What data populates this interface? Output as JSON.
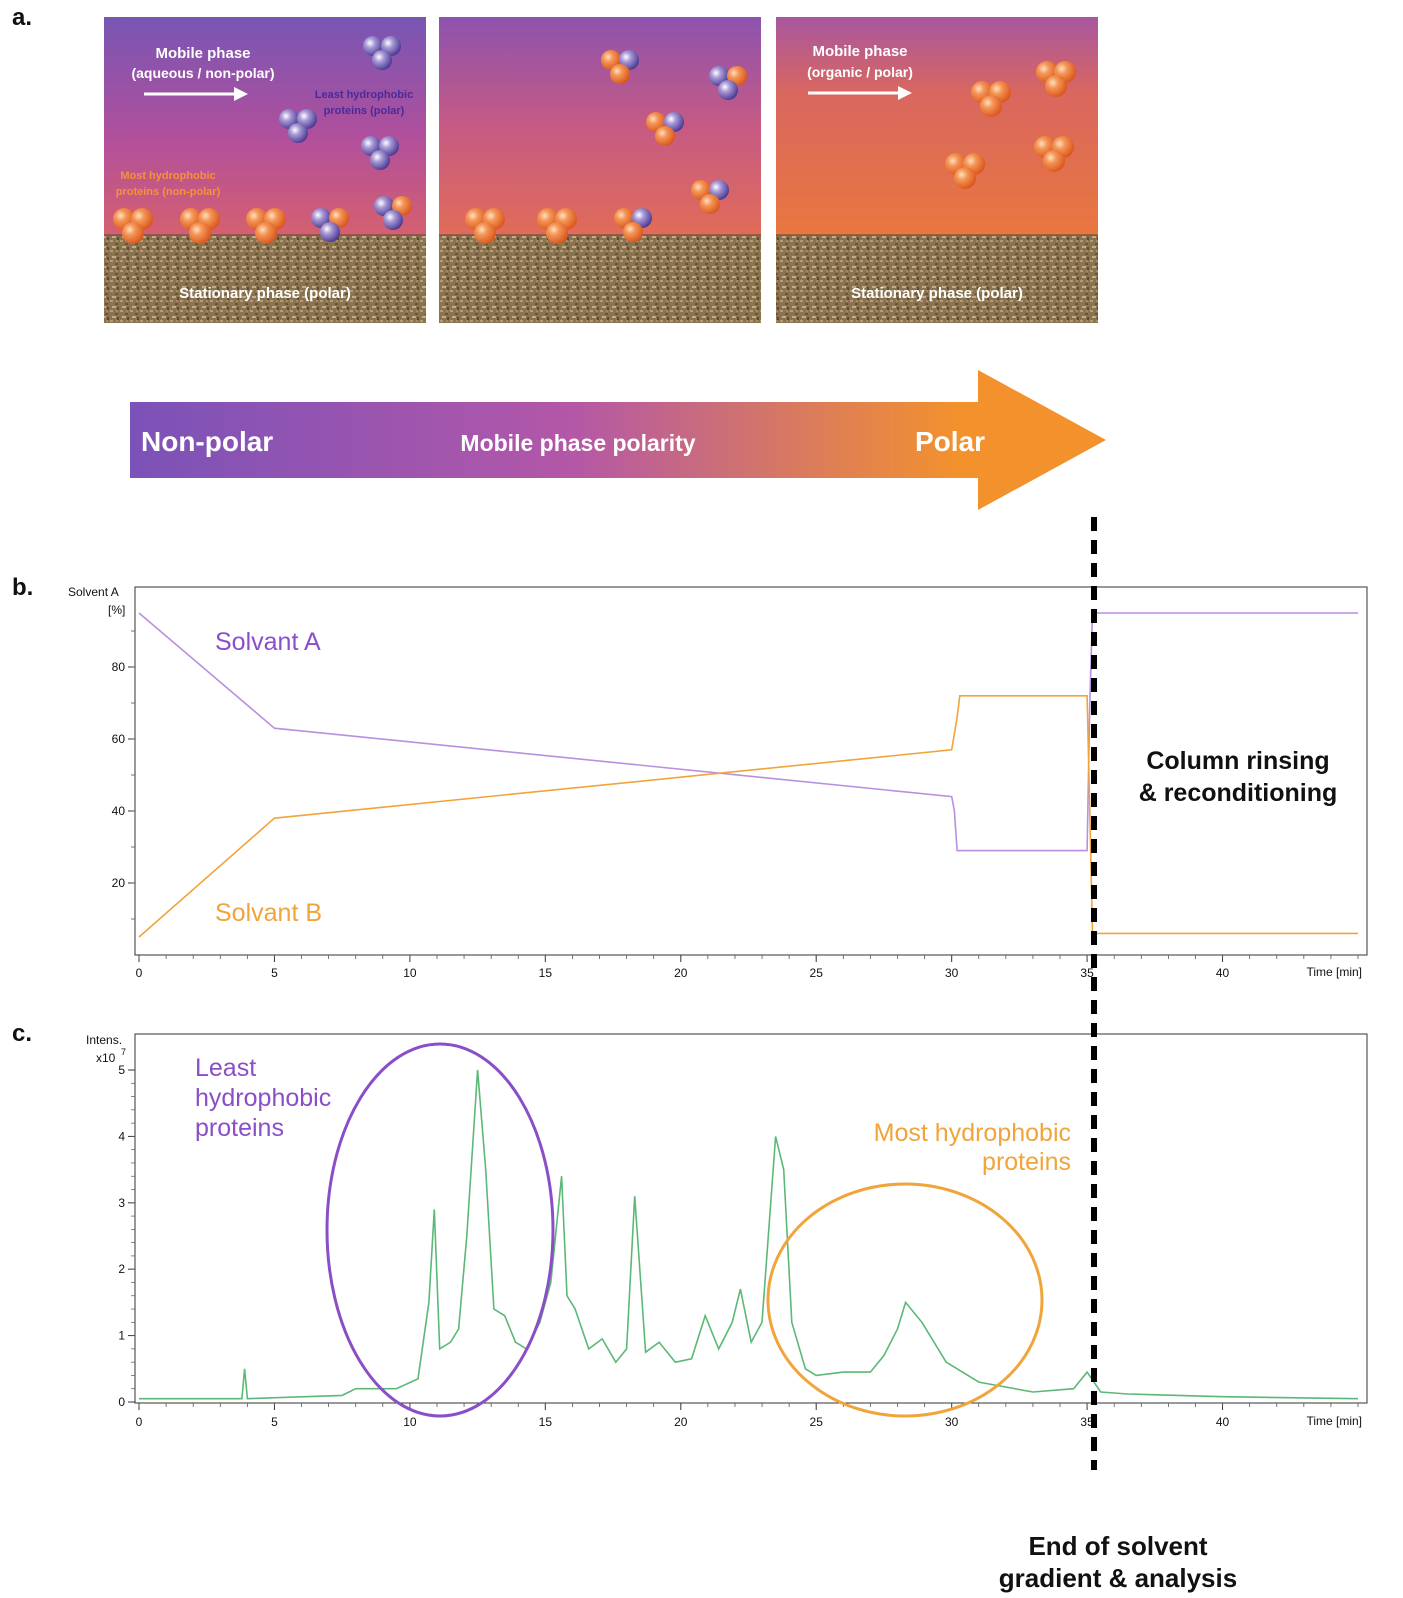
{
  "panels": {
    "a": "a.",
    "b": "b.",
    "c": "c."
  },
  "diagram": {
    "box1": {
      "mobile_title": "Mobile phase",
      "mobile_sub": "(aqueous / non-polar)",
      "least_line1": "Least hydrophobic",
      "least_line2": "proteins (polar)",
      "most_line1": "Most hydrophobic",
      "most_line2": "proteins (non-polar)",
      "stationary": "Stationary phase (polar)"
    },
    "box3": {
      "mobile_title": "Mobile phase",
      "mobile_sub": "(organic / polar)",
      "stationary": "Stationary phase (polar)"
    },
    "colors": {
      "purple": "#7a55b0",
      "magenta": "#b14d9a",
      "orange": "#e8783f",
      "sand": "#8a7350"
    }
  },
  "polarity_arrow": {
    "left": "Non-polar",
    "center": "Mobile phase polarity",
    "right": "Polar",
    "colors": {
      "start": "#7b52b8",
      "mid": "#b357a8",
      "end": "#f3922c"
    }
  },
  "solvent_chart": {
    "ylabel_line1": "Solvent A",
    "ylabel_line2": "[%]",
    "xlabel": "Time [min]",
    "series_a_label": "Solvant A",
    "series_b_label": "Solvant B",
    "rinse_line1": "Column rinsing",
    "rinse_line2": "& reconditioning",
    "colors": {
      "a": "#b98fe0",
      "b": "#f0a43a",
      "label_a": "#8a4fc8",
      "label_b": "#f0a43a"
    }
  },
  "chromatogram": {
    "ylabel_line1": "Intens.",
    "ylabel_line2": "x10",
    "ylabel_exp": "7",
    "xlabel": "Time [min]",
    "least_line1": "Least",
    "least_line2": "hydrophobic",
    "least_line3": "proteins",
    "most_line1": "Most hydrophobic",
    "most_line2": "proteins",
    "colors": {
      "trace": "#5cb877",
      "least": "#8a4fc8",
      "most": "#f0a43a"
    }
  },
  "end_label": {
    "line1": "End of solvent",
    "line2": "gradient & analysis"
  },
  "chart_data": [
    {
      "type": "line",
      "title": "",
      "xlabel": "Time [min]",
      "ylabel": "Solvent A [%]",
      "xlim": [
        0,
        45
      ],
      "ylim": [
        0,
        95
      ],
      "x_ticks": [
        0,
        5,
        10,
        15,
        20,
        25,
        30,
        35,
        40
      ],
      "y_ticks": [
        20,
        40,
        60,
        80
      ],
      "grid": false,
      "series": [
        {
          "name": "Solvant A",
          "x": [
            0,
            5,
            30,
            30.1,
            30.2,
            35.0,
            35.1,
            35.2,
            45
          ],
          "y": [
            95,
            63,
            44,
            40,
            29,
            29,
            70,
            95,
            95
          ]
        },
        {
          "name": "Solvant B",
          "x": [
            0,
            5,
            30,
            30.2,
            30.3,
            35.0,
            35.1,
            35.2,
            45
          ],
          "y": [
            5,
            38,
            57,
            66,
            72,
            72,
            40,
            6,
            6
          ]
        }
      ]
    },
    {
      "type": "line",
      "title": "",
      "xlabel": "Time [min]",
      "ylabel": "Intens. x10^7",
      "xlim": [
        0,
        45
      ],
      "ylim": [
        0,
        5
      ],
      "x_ticks": [
        0,
        5,
        10,
        15,
        20,
        25,
        30,
        35,
        40
      ],
      "y_ticks": [
        0,
        1,
        2,
        3,
        4,
        5
      ],
      "grid": false,
      "series": [
        {
          "name": "",
          "x": [
            0,
            3.8,
            3.9,
            4.0,
            7.5,
            8.0,
            9.5,
            10.3,
            10.7,
            10.9,
            11.1,
            11.5,
            11.8,
            12.1,
            12.5,
            12.8,
            13.1,
            13.5,
            13.9,
            14.3,
            14.8,
            15.2,
            15.6,
            15.8,
            16.1,
            16.6,
            17.1,
            17.6,
            18.0,
            18.3,
            18.7,
            19.2,
            19.8,
            20.4,
            20.9,
            21.4,
            21.9,
            22.2,
            22.6,
            23.0,
            23.5,
            23.8,
            24.1,
            24.6,
            25.0,
            26.0,
            27.0,
            27.5,
            28.0,
            28.3,
            28.9,
            29.8,
            31.0,
            33.0,
            34.5,
            35.0,
            35.5,
            36.5,
            40.0,
            45.0
          ],
          "y": [
            0.05,
            0.05,
            0.5,
            0.05,
            0.1,
            0.2,
            0.2,
            0.35,
            1.5,
            2.9,
            0.8,
            0.9,
            1.1,
            2.5,
            5.0,
            3.5,
            1.4,
            1.3,
            0.9,
            0.8,
            1.2,
            1.8,
            3.4,
            1.6,
            1.4,
            0.8,
            0.95,
            0.6,
            0.8,
            3.1,
            0.75,
            0.9,
            0.6,
            0.65,
            1.3,
            0.8,
            1.2,
            1.7,
            0.9,
            1.2,
            4.0,
            3.5,
            1.2,
            0.5,
            0.4,
            0.45,
            0.45,
            0.7,
            1.1,
            1.5,
            1.2,
            0.6,
            0.3,
            0.15,
            0.2,
            0.45,
            0.15,
            0.12,
            0.08,
            0.05
          ]
        }
      ]
    }
  ]
}
